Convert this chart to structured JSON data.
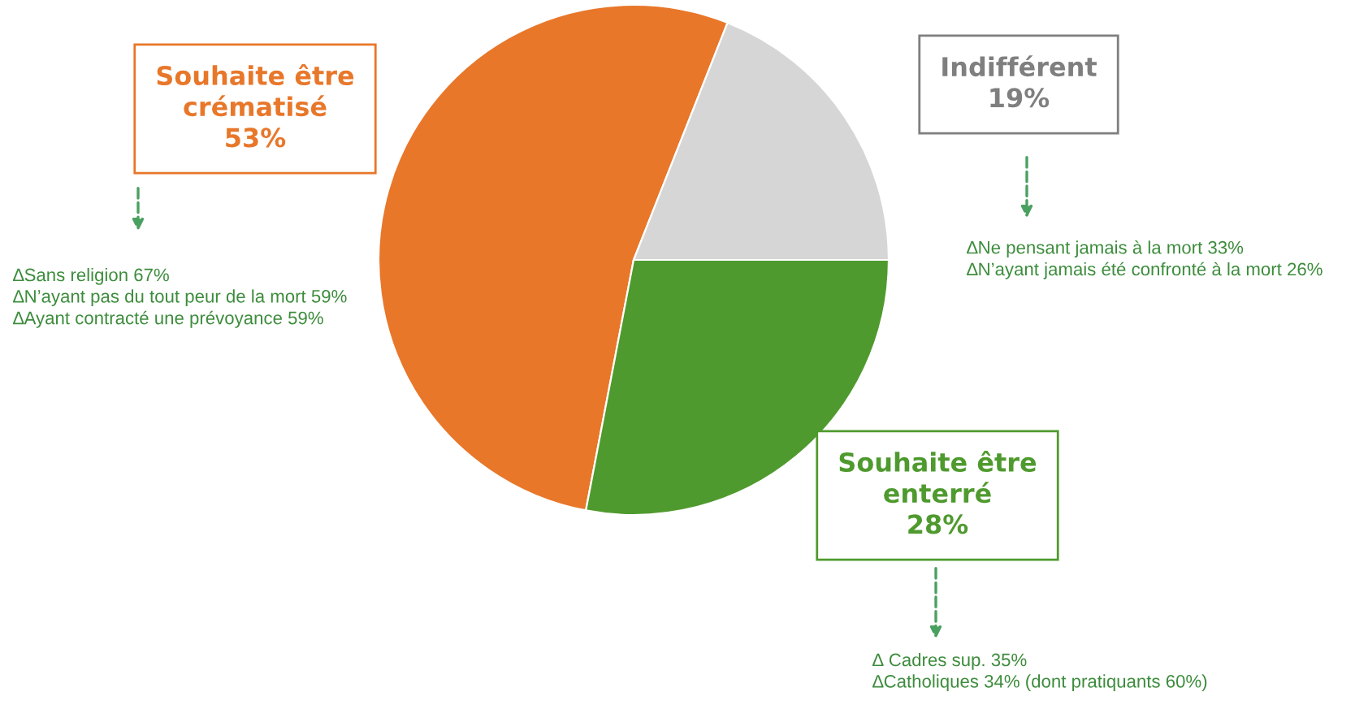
{
  "chart_data": {
    "type": "pie",
    "categories": [
      "Souhaite être\ncrématisé",
      "Indifférent",
      "Souhaite être\nenterré"
    ],
    "values": [
      53,
      19,
      28
    ],
    "value_labels": [
      "53%",
      "19%",
      "28%"
    ],
    "colors": [
      "#e8772a",
      "#d6d6d6",
      "#4f9a2e"
    ],
    "annotations": [
      "∆Sans religion 67%\n∆N’ayant pas du tout peur de la mort 59%\n∆Ayant contracté une prévoyance 59%",
      "∆Ne pensant jamais à la mort 33%\n∆N’ayant jamais été confronté à la mort 26%",
      "∆ Cadres sup. 35%\n∆Catholiques 34% (dont pratiquants 60%)"
    ]
  }
}
